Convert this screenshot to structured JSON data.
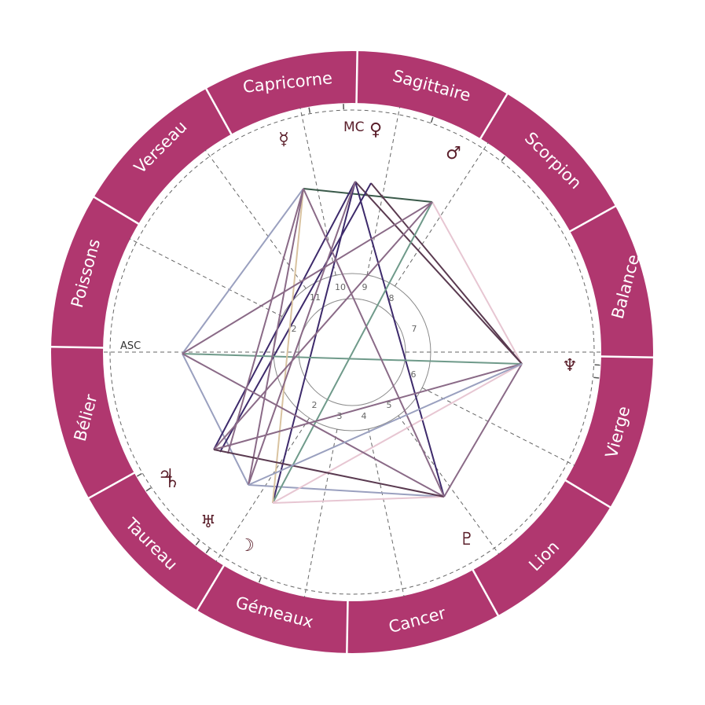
{
  "colors": {
    "ring": "#b0376f",
    "ring_divider": "#ffffff",
    "glyph": "#5a1e2a",
    "dash": "#666666"
  },
  "zodiac": [
    {
      "label": "Sagittaire"
    },
    {
      "label": "Scorpion"
    },
    {
      "label": "Balance"
    },
    {
      "label": "Vierge"
    },
    {
      "label": "Lion"
    },
    {
      "label": "Cancer"
    },
    {
      "label": "Gémeaux"
    },
    {
      "label": "Taureau"
    },
    {
      "label": "Bélier"
    },
    {
      "label": "Poissons"
    },
    {
      "label": "Verseau"
    },
    {
      "label": "Capricorne"
    }
  ],
  "planets": [
    {
      "name": "mercury",
      "glyph": "☿"
    },
    {
      "name": "venus",
      "glyph": "♀"
    },
    {
      "name": "mars",
      "glyph": "♂"
    },
    {
      "name": "neptune",
      "glyph": "♆"
    },
    {
      "name": "pluto",
      "glyph": "♇"
    },
    {
      "name": "moon",
      "glyph": "☽"
    },
    {
      "name": "uranus",
      "glyph": "♅"
    },
    {
      "name": "jupiter",
      "glyph": "♃"
    },
    {
      "name": "saturn",
      "glyph": "♄"
    }
  ],
  "axes": {
    "asc": "ASC",
    "mc": "MC"
  },
  "houses": [
    "1",
    "2",
    "3",
    "4",
    "5",
    "6",
    "7",
    "8",
    "9",
    "10",
    "11",
    "12"
  ],
  "aspect_colors": [
    "#3d2a6b",
    "#8a6a87",
    "#9aa0bf",
    "#6f9a8a",
    "#e7c6d2",
    "#d9c3a0",
    "#5a3a50",
    "#3a5a4a"
  ]
}
